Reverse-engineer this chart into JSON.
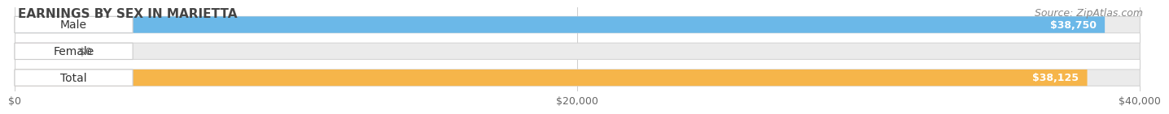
{
  "title": "EARNINGS BY SEX IN MARIETTA",
  "source": "Source: ZipAtlas.com",
  "categories": [
    "Male",
    "Female",
    "Total"
  ],
  "values": [
    38750,
    0,
    38125
  ],
  "bar_colors": [
    "#6BB8E8",
    "#F497B8",
    "#F6B54A"
  ],
  "bar_bg_color": "#EBEBEB",
  "value_labels": [
    "$38,750",
    "$0",
    "$38,125"
  ],
  "x_ticks": [
    0,
    20000,
    40000
  ],
  "x_tick_labels": [
    "$0",
    "$20,000",
    "$40,000"
  ],
  "xlim_max": 40000,
  "background_color": "#FFFFFF",
  "title_fontsize": 11,
  "source_fontsize": 9,
  "bar_label_fontsize": 10,
  "value_fontsize": 9,
  "tick_fontsize": 9,
  "female_display_value": 1800
}
